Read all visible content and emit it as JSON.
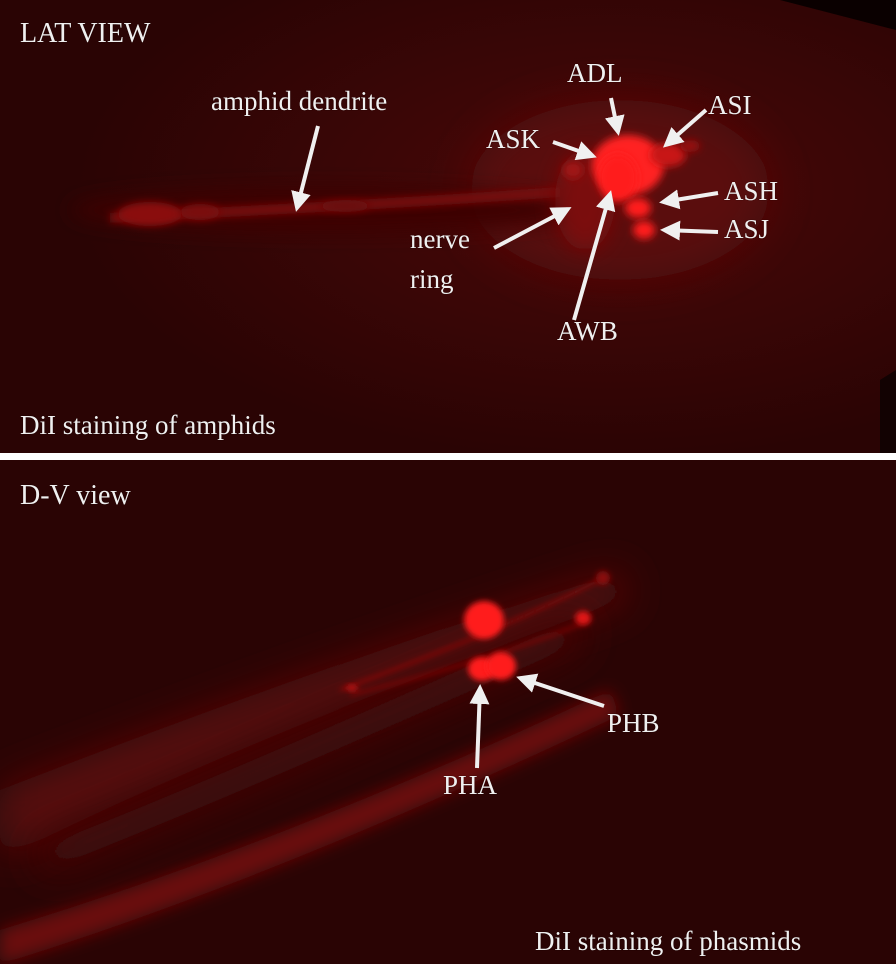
{
  "top_panel": {
    "view_label": "LAT VIEW",
    "caption": "DiI staining of amphids",
    "labels": {
      "amphid_dendrite": "amphid dendrite",
      "adl": "ADL",
      "asi": "ASI",
      "ask": "ASK",
      "ash": "ASH",
      "asj": "ASJ",
      "nerve": "nerve",
      "ring": "ring",
      "awb": "AWB"
    }
  },
  "bottom_panel": {
    "view_label": "D-V view",
    "caption": "DiI staining of phasmids",
    "labels": {
      "pha": "PHA",
      "phb": "PHB"
    }
  },
  "colors": {
    "background": "#2a0404",
    "signal": "#ff1010",
    "label_text": "#f0f0f0",
    "divider": "#ffffff"
  }
}
